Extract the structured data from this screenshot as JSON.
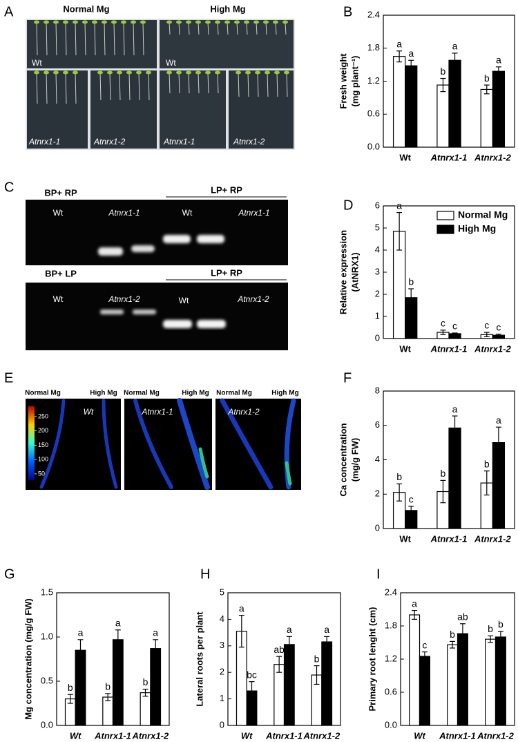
{
  "panel_labels": [
    "A",
    "B",
    "C",
    "D",
    "E",
    "F",
    "G",
    "H",
    "I"
  ],
  "panel_a": {
    "column_headers": [
      "Normal Mg",
      "High Mg"
    ],
    "labels": [
      "Wt",
      "Wt",
      "Atnrx1-1",
      "Atnrx1-2",
      "Atnrx1-1",
      "Atnrx1-2"
    ]
  },
  "panel_c": {
    "top": {
      "primers": [
        "BP+ RP",
        "LP+ RP"
      ],
      "lanes": [
        "Wt",
        "Atnrx1-1",
        "Wt",
        "Atnrx1-1"
      ]
    },
    "bottom": {
      "primers": [
        "BP+ LP",
        "LP+ RP"
      ],
      "lanes": [
        "Wt",
        "Atnrx1-2",
        "Wt",
        "Atnrx1-2"
      ]
    }
  },
  "panel_e": {
    "conditions": [
      "Normal Mg",
      "High Mg",
      "Normal Mg",
      "High Mg",
      "Normal Mg",
      "High Mg"
    ],
    "lines": [
      "Wt",
      "Atnrx1-1",
      "Atnrx1-2"
    ],
    "colorbar_lim": [
      28,
      286
    ],
    "colorbar_ticks": [
      250,
      200,
      150,
      100,
      50
    ]
  },
  "chart_data": [
    {
      "type": "bar",
      "ylabel": [
        "Fresh weight",
        "(mg plant⁻¹)"
      ],
      "categories": [
        "Wt",
        "Atnrx1-1",
        "Atnrx1-2"
      ],
      "series": [
        {
          "color": "#ffffff",
          "values": [
            1.65,
            1.13,
            1.05
          ],
          "errors": [
            0.1,
            0.12,
            0.08
          ],
          "labels": [
            "a",
            "b",
            "b"
          ]
        },
        {
          "color": "#000000",
          "values": [
            1.48,
            1.58,
            1.38
          ],
          "errors": [
            0.1,
            0.13,
            0.08
          ],
          "labels": [
            "a",
            "a",
            "a"
          ]
        }
      ],
      "ylim": [
        0,
        2.4
      ],
      "yticks": [
        {
          "value": 0,
          "label": "0.0"
        },
        0.6,
        1.2,
        1.8,
        2.4
      ]
    },
    {
      "type": "bar",
      "ylabel": [
        "Relative expression",
        "(AtNRX1)"
      ],
      "categories": [
        "Wt",
        "Atnrx1-1",
        "Atnrx1-2"
      ],
      "series": [
        {
          "name": "Normal Mg",
          "color": "#ffffff",
          "values": [
            4.85,
            0.28,
            0.18
          ],
          "errors": [
            0.85,
            0.1,
            0.1
          ],
          "labels": [
            "a",
            "c",
            "c"
          ]
        },
        {
          "name": "High Mg",
          "color": "#000000",
          "values": [
            1.85,
            0.22,
            0.15
          ],
          "errors": [
            0.4,
            0.03,
            0.05
          ],
          "labels": [
            "b",
            "c",
            "c"
          ]
        }
      ],
      "ylim": [
        0,
        6
      ],
      "yticks": [
        0,
        1,
        2,
        3,
        4,
        5,
        6
      ],
      "legend": "upper right"
    },
    {
      "type": "bar",
      "ylabel": [
        "Ca concentration",
        "(mg/g FW)"
      ],
      "categories": [
        "Wt",
        "Atnrx1-1",
        "Atnrx1-2"
      ],
      "series": [
        {
          "color": "#ffffff",
          "values": [
            2.1,
            2.15,
            2.65
          ],
          "errors": [
            0.5,
            0.65,
            0.7
          ],
          "labels": [
            "b",
            "b",
            "b"
          ]
        },
        {
          "color": "#000000",
          "values": [
            1.05,
            5.85,
            5.0
          ],
          "errors": [
            0.25,
            0.7,
            0.9
          ],
          "labels": [
            "c",
            "a",
            "a"
          ]
        }
      ],
      "ylim": [
        0,
        8
      ],
      "yticks": [
        0,
        2,
        4,
        6,
        8
      ]
    },
    {
      "type": "bar",
      "ylabel": [
        "Mg concentration (mg/g FW)"
      ],
      "categories": [
        "Wt",
        "Atnrx1-1",
        "Atnrx1-2"
      ],
      "series": [
        {
          "color": "#ffffff",
          "values": [
            0.3,
            0.32,
            0.37
          ],
          "errors": [
            0.05,
            0.04,
            0.04
          ],
          "labels": [
            "b",
            "b",
            "b"
          ]
        },
        {
          "color": "#000000",
          "values": [
            0.85,
            0.97,
            0.87
          ],
          "errors": [
            0.12,
            0.11,
            0.1
          ],
          "labels": [
            "a",
            "a",
            "a"
          ]
        }
      ],
      "ylim": [
        0,
        1.5
      ],
      "yticks": [
        {
          "value": 0,
          "label": "0.0"
        },
        0.5,
        {
          "value": 1,
          "label": "1.0"
        },
        1.5
      ]
    },
    {
      "type": "bar",
      "ylabel": [
        "Lateral roots per plant"
      ],
      "categories": [
        "Wt",
        "Atnrx1-1",
        "Atnrx1-2"
      ],
      "series": [
        {
          "color": "#ffffff",
          "values": [
            3.55,
            2.3,
            1.9
          ],
          "errors": [
            0.6,
            0.3,
            0.35
          ],
          "labels": [
            "a",
            "ab",
            "b"
          ]
        },
        {
          "color": "#000000",
          "values": [
            1.3,
            3.05,
            3.15
          ],
          "errors": [
            0.35,
            0.3,
            0.2
          ],
          "labels": [
            "bc",
            "a",
            "a"
          ]
        }
      ],
      "ylim": [
        0,
        5
      ],
      "yticks": [
        0,
        1,
        2,
        3,
        4,
        5
      ]
    },
    {
      "type": "bar",
      "ylabel": [
        "Primary root lenght (cm)"
      ],
      "categories": [
        "Wt",
        "Atnrx1-1",
        "Atnrx1-2"
      ],
      "series": [
        {
          "color": "#ffffff",
          "values": [
            2.0,
            1.46,
            1.56
          ],
          "errors": [
            0.08,
            0.06,
            0.06
          ],
          "labels": [
            "a",
            "b",
            "b"
          ]
        },
        {
          "color": "#000000",
          "values": [
            1.25,
            1.66,
            1.6
          ],
          "errors": [
            0.08,
            0.18,
            0.1
          ],
          "labels": [
            "c",
            "ab",
            "b"
          ]
        }
      ],
      "ylim": [
        0,
        2.4
      ],
      "yticks": [
        {
          "value": 0,
          "label": "0.0"
        },
        0.6,
        1.2,
        1.8,
        2.4
      ]
    }
  ]
}
